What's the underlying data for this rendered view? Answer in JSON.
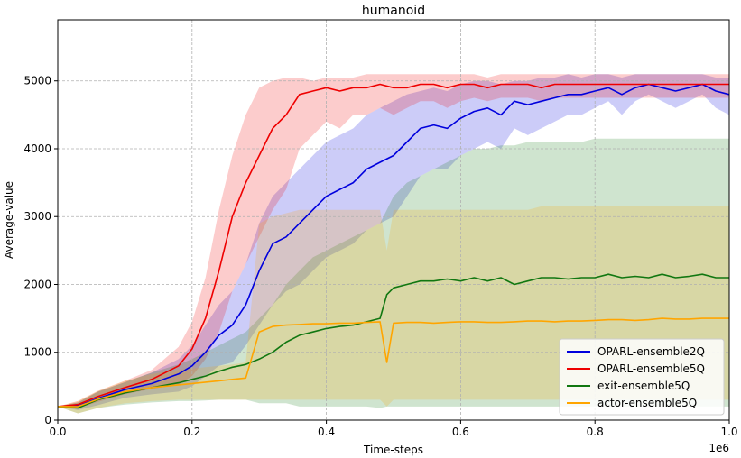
{
  "chart_data": {
    "type": "line",
    "title": "humanoid",
    "xlabel": "Time-steps",
    "ylabel": "Average-value",
    "x_offset_label": "1e6",
    "xlim": [
      0,
      1000000
    ],
    "ylim": [
      0,
      5900
    ],
    "xticks": [
      0,
      200000,
      400000,
      600000,
      800000,
      1000000
    ],
    "xtick_labels": [
      "0.0",
      "0.2",
      "0.4",
      "0.6",
      "0.8",
      "1.0"
    ],
    "yticks": [
      0,
      1000,
      2000,
      3000,
      4000,
      5000
    ],
    "ytick_labels": [
      "0",
      "1000",
      "2000",
      "3000",
      "4000",
      "5000"
    ],
    "grid": true,
    "legend_position": "lower-right",
    "series": [
      {
        "name": "OPARL-ensemble2Q",
        "color": "#0000dd",
        "x": [
          0,
          30000,
          60000,
          100000,
          140000,
          180000,
          200000,
          220000,
          240000,
          260000,
          280000,
          300000,
          320000,
          340000,
          360000,
          380000,
          400000,
          420000,
          440000,
          460000,
          480000,
          500000,
          520000,
          540000,
          560000,
          580000,
          600000,
          620000,
          640000,
          660000,
          680000,
          700000,
          720000,
          740000,
          760000,
          780000,
          800000,
          820000,
          840000,
          860000,
          880000,
          900000,
          920000,
          940000,
          960000,
          980000,
          1000000
        ],
        "y": [
          200,
          210,
          320,
          450,
          540,
          680,
          800,
          1000,
          1250,
          1400,
          1700,
          2200,
          2600,
          2700,
          2900,
          3100,
          3300,
          3400,
          3500,
          3700,
          3800,
          3900,
          4100,
          4300,
          4350,
          4300,
          4450,
          4550,
          4600,
          4500,
          4700,
          4650,
          4700,
          4750,
          4800,
          4800,
          4850,
          4900,
          4800,
          4900,
          4950,
          4900,
          4850,
          4900,
          4950,
          4850,
          4800
        ],
        "band": [
          [
            200,
            200
          ],
          [
            150,
            260
          ],
          [
            220,
            420
          ],
          [
            330,
            560
          ],
          [
            380,
            700
          ],
          [
            420,
            900
          ],
          [
            500,
            1100
          ],
          [
            650,
            1400
          ],
          [
            800,
            1700
          ],
          [
            850,
            1900
          ],
          [
            1100,
            2300
          ],
          [
            1400,
            2900
          ],
          [
            1700,
            3300
          ],
          [
            1900,
            3500
          ],
          [
            2000,
            3700
          ],
          [
            2200,
            3900
          ],
          [
            2400,
            4100
          ],
          [
            2500,
            4200
          ],
          [
            2600,
            4300
          ],
          [
            2800,
            4500
          ],
          [
            2900,
            4600
          ],
          [
            3000,
            4700
          ],
          [
            3300,
            4800
          ],
          [
            3600,
            4850
          ],
          [
            3700,
            4900
          ],
          [
            3700,
            4850
          ],
          [
            3900,
            4950
          ],
          [
            4000,
            5000
          ],
          [
            4100,
            5000
          ],
          [
            4000,
            4950
          ],
          [
            4300,
            5000
          ],
          [
            4200,
            5000
          ],
          [
            4300,
            5050
          ],
          [
            4400,
            5050
          ],
          [
            4500,
            5100
          ],
          [
            4500,
            5050
          ],
          [
            4600,
            5100
          ],
          [
            4700,
            5100
          ],
          [
            4500,
            5050
          ],
          [
            4700,
            5100
          ],
          [
            4800,
            5100
          ],
          [
            4700,
            5100
          ],
          [
            4600,
            5100
          ],
          [
            4700,
            5100
          ],
          [
            4800,
            5100
          ],
          [
            4600,
            5050
          ],
          [
            4500,
            5050
          ]
        ]
      },
      {
        "name": "OPARL-ensemble5Q",
        "color": "#ee0000",
        "x": [
          0,
          30000,
          60000,
          100000,
          140000,
          180000,
          200000,
          220000,
          240000,
          260000,
          280000,
          300000,
          320000,
          340000,
          360000,
          380000,
          400000,
          420000,
          440000,
          460000,
          480000,
          500000,
          520000,
          540000,
          560000,
          580000,
          600000,
          620000,
          640000,
          660000,
          680000,
          700000,
          720000,
          740000,
          760000,
          780000,
          800000,
          820000,
          840000,
          860000,
          880000,
          900000,
          920000,
          940000,
          960000,
          980000,
          1000000
        ],
        "y": [
          200,
          230,
          350,
          480,
          600,
          800,
          1050,
          1500,
          2200,
          3000,
          3500,
          3900,
          4300,
          4500,
          4800,
          4850,
          4900,
          4850,
          4900,
          4900,
          4950,
          4900,
          4900,
          4950,
          4950,
          4900,
          4950,
          4950,
          4900,
          4950,
          4950,
          4950,
          4900,
          4950,
          4950,
          4950,
          4950,
          4950,
          4950,
          4950,
          4950,
          4950,
          4950,
          4950,
          4950,
          4950,
          4950
        ],
        "band": [
          [
            200,
            200
          ],
          [
            180,
            280
          ],
          [
            270,
            430
          ],
          [
            380,
            580
          ],
          [
            460,
            740
          ],
          [
            520,
            1080
          ],
          [
            650,
            1450
          ],
          [
            900,
            2100
          ],
          [
            1300,
            3100
          ],
          [
            1900,
            3900
          ],
          [
            2300,
            4500
          ],
          [
            2700,
            4900
          ],
          [
            3100,
            5000
          ],
          [
            3400,
            5050
          ],
          [
            4000,
            5050
          ],
          [
            4200,
            5000
          ],
          [
            4400,
            5050
          ],
          [
            4300,
            5050
          ],
          [
            4500,
            5050
          ],
          [
            4500,
            5100
          ],
          [
            4600,
            5100
          ],
          [
            4500,
            5100
          ],
          [
            4600,
            5100
          ],
          [
            4700,
            5100
          ],
          [
            4700,
            5100
          ],
          [
            4600,
            5100
          ],
          [
            4700,
            5100
          ],
          [
            4750,
            5100
          ],
          [
            4700,
            5050
          ],
          [
            4750,
            5100
          ],
          [
            4750,
            5100
          ],
          [
            4750,
            5100
          ],
          [
            4700,
            5100
          ],
          [
            4750,
            5100
          ],
          [
            4750,
            5100
          ],
          [
            4750,
            5100
          ],
          [
            4750,
            5100
          ],
          [
            4750,
            5100
          ],
          [
            4750,
            5100
          ],
          [
            4750,
            5100
          ],
          [
            4750,
            5100
          ],
          [
            4750,
            5100
          ],
          [
            4750,
            5100
          ],
          [
            4750,
            5100
          ],
          [
            4750,
            5100
          ],
          [
            4750,
            5100
          ],
          [
            4750,
            5100
          ]
        ]
      },
      {
        "name": "exit-ensemble5Q",
        "color": "#117711",
        "x": [
          0,
          30000,
          60000,
          100000,
          140000,
          180000,
          200000,
          220000,
          240000,
          260000,
          280000,
          300000,
          320000,
          340000,
          360000,
          380000,
          400000,
          420000,
          440000,
          460000,
          480000,
          490000,
          500000,
          520000,
          540000,
          560000,
          580000,
          600000,
          620000,
          640000,
          660000,
          680000,
          700000,
          720000,
          740000,
          760000,
          780000,
          800000,
          820000,
          840000,
          860000,
          880000,
          900000,
          920000,
          940000,
          960000,
          980000,
          1000000
        ],
        "y": [
          200,
          180,
          300,
          400,
          480,
          550,
          600,
          650,
          720,
          780,
          820,
          900,
          1000,
          1150,
          1250,
          1300,
          1350,
          1380,
          1400,
          1450,
          1500,
          1850,
          1950,
          2000,
          2050,
          2050,
          2080,
          2050,
          2100,
          2050,
          2100,
          2000,
          2050,
          2100,
          2100,
          2080,
          2100,
          2100,
          2150,
          2100,
          2120,
          2100,
          2150,
          2100,
          2120,
          2150,
          2100,
          2100
        ],
        "band": [
          [
            200,
            200
          ],
          [
            100,
            260
          ],
          [
            180,
            420
          ],
          [
            230,
            560
          ],
          [
            260,
            700
          ],
          [
            280,
            820
          ],
          [
            280,
            900
          ],
          [
            290,
            1000
          ],
          [
            300,
            1100
          ],
          [
            300,
            1200
          ],
          [
            300,
            1300
          ],
          [
            250,
            1500
          ],
          [
            250,
            1700
          ],
          [
            250,
            2000
          ],
          [
            200,
            2200
          ],
          [
            200,
            2400
          ],
          [
            200,
            2500
          ],
          [
            200,
            2600
          ],
          [
            200,
            2700
          ],
          [
            200,
            2800
          ],
          [
            180,
            2900
          ],
          [
            200,
            3100
          ],
          [
            200,
            3300
          ],
          [
            200,
            3500
          ],
          [
            200,
            3600
          ],
          [
            200,
            3700
          ],
          [
            200,
            3800
          ],
          [
            200,
            3900
          ],
          [
            200,
            4000
          ],
          [
            200,
            4000
          ],
          [
            200,
            4050
          ],
          [
            200,
            4050
          ],
          [
            200,
            4100
          ],
          [
            200,
            4100
          ],
          [
            200,
            4100
          ],
          [
            200,
            4100
          ],
          [
            200,
            4100
          ],
          [
            200,
            4150
          ],
          [
            200,
            4150
          ],
          [
            200,
            4150
          ],
          [
            200,
            4150
          ],
          [
            200,
            4150
          ],
          [
            200,
            4150
          ],
          [
            200,
            4150
          ],
          [
            200,
            4150
          ],
          [
            200,
            4150
          ],
          [
            200,
            4150
          ],
          [
            200,
            4150
          ]
        ]
      },
      {
        "name": "actor-ensemble5Q",
        "color": "#ffa500",
        "x": [
          0,
          30000,
          60000,
          100000,
          140000,
          180000,
          200000,
          220000,
          240000,
          260000,
          280000,
          300000,
          320000,
          340000,
          360000,
          380000,
          400000,
          420000,
          440000,
          460000,
          480000,
          490000,
          500000,
          520000,
          540000,
          560000,
          580000,
          600000,
          620000,
          640000,
          660000,
          680000,
          700000,
          720000,
          740000,
          760000,
          780000,
          800000,
          820000,
          840000,
          860000,
          880000,
          900000,
          920000,
          940000,
          960000,
          980000,
          1000000
        ],
        "y": [
          200,
          200,
          310,
          420,
          480,
          520,
          540,
          560,
          580,
          600,
          620,
          1300,
          1380,
          1400,
          1410,
          1420,
          1420,
          1430,
          1430,
          1440,
          1450,
          850,
          1430,
          1440,
          1440,
          1430,
          1440,
          1450,
          1450,
          1440,
          1440,
          1450,
          1460,
          1460,
          1450,
          1460,
          1460,
          1470,
          1480,
          1480,
          1470,
          1480,
          1500,
          1490,
          1490,
          1500,
          1500,
          1500
        ],
        "band": [
          [
            200,
            200
          ],
          [
            100,
            280
          ],
          [
            180,
            430
          ],
          [
            250,
            580
          ],
          [
            280,
            680
          ],
          [
            300,
            740
          ],
          [
            300,
            760
          ],
          [
            300,
            780
          ],
          [
            300,
            800
          ],
          [
            300,
            820
          ],
          [
            300,
            850
          ],
          [
            300,
            2900
          ],
          [
            300,
            3000
          ],
          [
            300,
            3050
          ],
          [
            300,
            3100
          ],
          [
            300,
            3100
          ],
          [
            300,
            3100
          ],
          [
            300,
            3100
          ],
          [
            300,
            3100
          ],
          [
            300,
            3100
          ],
          [
            300,
            3100
          ],
          [
            200,
            2500
          ],
          [
            300,
            3100
          ],
          [
            300,
            3100
          ],
          [
            300,
            3100
          ],
          [
            300,
            3100
          ],
          [
            300,
            3100
          ],
          [
            300,
            3100
          ],
          [
            300,
            3100
          ],
          [
            300,
            3100
          ],
          [
            300,
            3100
          ],
          [
            300,
            3100
          ],
          [
            300,
            3100
          ],
          [
            300,
            3150
          ],
          [
            300,
            3150
          ],
          [
            300,
            3150
          ],
          [
            300,
            3150
          ],
          [
            300,
            3150
          ],
          [
            300,
            3150
          ],
          [
            300,
            3150
          ],
          [
            300,
            3150
          ],
          [
            300,
            3150
          ],
          [
            300,
            3150
          ],
          [
            300,
            3150
          ],
          [
            300,
            3150
          ],
          [
            300,
            3150
          ],
          [
            300,
            3150
          ],
          [
            300,
            3150
          ]
        ]
      }
    ]
  }
}
